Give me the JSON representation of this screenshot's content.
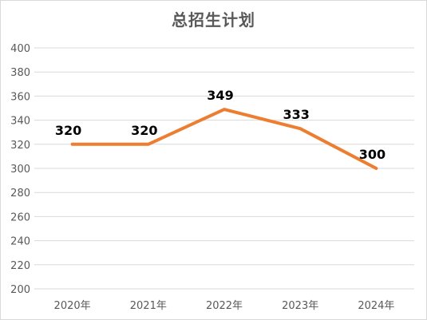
{
  "chart_data": {
    "type": "line",
    "title": "总招生计划",
    "xlabel": "",
    "ylabel": "",
    "categories": [
      "2020年",
      "2021年",
      "2022年",
      "2023年",
      "2024年"
    ],
    "series": [
      {
        "values": [
          320,
          320,
          349,
          333,
          300
        ]
      }
    ],
    "ylim": [
      200,
      400
    ],
    "yticks": [
      200,
      220,
      240,
      260,
      280,
      300,
      320,
      340,
      360,
      380,
      400
    ],
    "grid": true,
    "legend": "none",
    "data_labels": true,
    "colors": {
      "line": "#ED7D31",
      "grid": "#d9d9d9",
      "axis_text": "#595959",
      "title": "#595959"
    }
  }
}
